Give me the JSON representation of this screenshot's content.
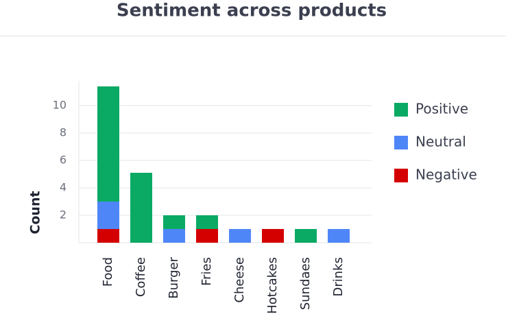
{
  "chart_data": {
    "type": "bar",
    "stacked": true,
    "title": "Sentiment across products",
    "y_label": "Count",
    "categories": [
      "Food",
      "Coffee",
      "Burger",
      "Fries",
      "Cheese",
      "Hotcakes",
      "Sundaes",
      "Drinks"
    ],
    "series": [
      {
        "name": "Negative",
        "color": "#d40000",
        "values": [
          1,
          0,
          0,
          1,
          0,
          1,
          0,
          0
        ]
      },
      {
        "name": "Neutral",
        "color": "#4f86f7",
        "values": [
          2,
          0,
          1,
          0,
          1,
          0,
          0,
          1
        ]
      },
      {
        "name": "Positive",
        "color": "#0aaa64",
        "values": [
          8.4,
          5.1,
          1,
          1,
          0,
          0,
          1,
          0
        ]
      }
    ],
    "ylim": [
      0,
      11.8
    ],
    "yticks": [
      2,
      4,
      6,
      8,
      10
    ],
    "grid": true
  }
}
